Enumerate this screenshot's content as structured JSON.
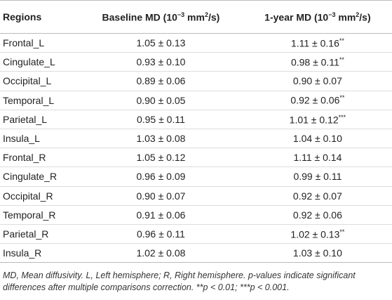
{
  "table": {
    "header": [
      [
        "Regions"
      ],
      [
        "Baseline MD (10",
        "−3",
        " mm",
        "2",
        "/s)"
      ],
      [
        "1-year MD (10",
        "−3",
        " mm",
        "2",
        "/s)"
      ]
    ],
    "rows": [
      [
        "Frontal_L",
        [
          "1.05 ± 0.13"
        ],
        [
          "1.11 ± 0.16",
          "**"
        ]
      ],
      [
        "Cingulate_L",
        [
          "0.93 ± 0.10"
        ],
        [
          "0.98 ± 0.11",
          "**"
        ]
      ],
      [
        "Occipital_L",
        [
          "0.89 ± 0.06"
        ],
        [
          "0.90 ± 0.07"
        ]
      ],
      [
        "Temporal_L",
        [
          "0.90 ± 0.05"
        ],
        [
          "0.92 ± 0.06",
          "**"
        ]
      ],
      [
        "Parietal_L",
        [
          "0.95 ± 0.11"
        ],
        [
          "1.01 ± 0.12",
          "***"
        ]
      ],
      [
        "Insula_L",
        [
          "1.03 ± 0.08"
        ],
        [
          "1.04 ± 0.10"
        ]
      ],
      [
        "Frontal_R",
        [
          "1.05 ± 0.12"
        ],
        [
          "1.11 ± 0.14"
        ]
      ],
      [
        "Cingulate_R",
        [
          "0.96 ± 0.09"
        ],
        [
          "0.99 ± 0.11"
        ]
      ],
      [
        "Occipital_R",
        [
          "0.90 ± 0.07"
        ],
        [
          "0.92 ± 0.07"
        ]
      ],
      [
        "Temporal_R",
        [
          "0.91 ± 0.06"
        ],
        [
          "0.92 ± 0.06"
        ]
      ],
      [
        "Parietal_R",
        [
          "0.96 ± 0.11"
        ],
        [
          "1.02 ± 0.13",
          "**"
        ]
      ],
      [
        "Insula_R",
        [
          "1.02 ± 0.08"
        ],
        [
          "1.03 ± 0.10"
        ]
      ]
    ],
    "footnote": "MD, Mean diffusivity. L, Left hemisphere; R, Right hemisphere. p-values indicate significant differences after multiple comparisons correction. **p < 0.01; ***p < 0.001."
  }
}
